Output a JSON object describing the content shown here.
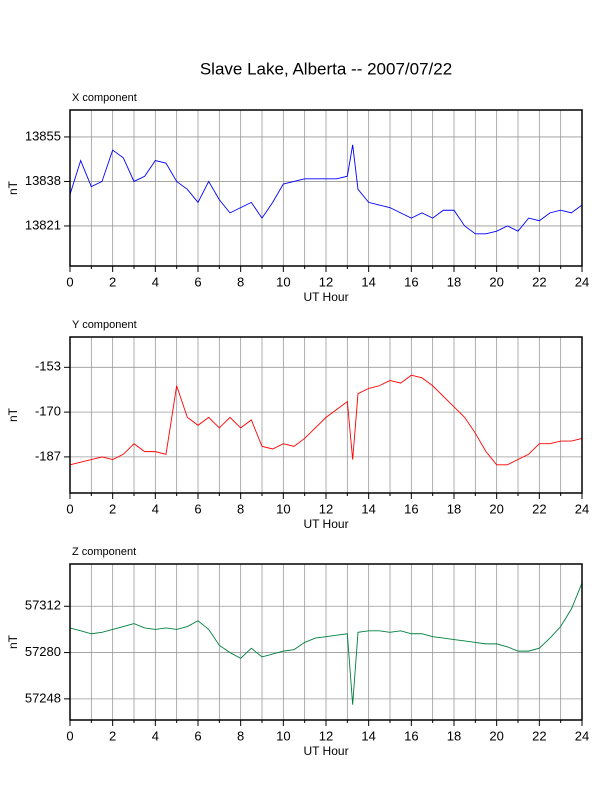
{
  "page": {
    "title": "Slave Lake, Alberta -- 2007/07/22"
  },
  "chart_data": [
    {
      "type": "line",
      "title": "X component",
      "xlabel": "UT Hour",
      "ylabel": "nT",
      "x": [
        0,
        0.5,
        1,
        1.5,
        2,
        2.5,
        3,
        3.5,
        4,
        4.5,
        5,
        5.5,
        6,
        6.5,
        7,
        7.5,
        8,
        8.5,
        9,
        9.5,
        10,
        10.5,
        11,
        11.5,
        12,
        12.5,
        13,
        13.25,
        13.5,
        14,
        14.5,
        15,
        15.5,
        16,
        16.5,
        17,
        17.5,
        18,
        18.5,
        19,
        19.5,
        20,
        20.5,
        21,
        21.5,
        22,
        22.5,
        23,
        23.5,
        24
      ],
      "series": [
        {
          "color": "#0000ff",
          "values": [
            13833,
            13846,
            13836,
            13838,
            13850,
            13847,
            13838,
            13840,
            13846,
            13845,
            13838,
            13835,
            13830,
            13838,
            13831,
            13826,
            13828,
            13830,
            13824,
            13830,
            13837,
            13838,
            13839,
            13839,
            13839,
            13839,
            13840,
            13852,
            13835,
            13830,
            13829,
            13828,
            13826,
            13824,
            13826,
            13824,
            13827,
            13827,
            13821,
            13818,
            13818,
            13819,
            13821,
            13819,
            13824,
            13823,
            13826,
            13827,
            13826,
            13829
          ]
        }
      ],
      "xlim": [
        0,
        24
      ],
      "xticks": [
        0,
        2,
        4,
        6,
        8,
        10,
        12,
        14,
        16,
        18,
        20,
        22,
        24
      ],
      "xminor": [
        1,
        3,
        5,
        7,
        9,
        11,
        13,
        15,
        17,
        19,
        21,
        23
      ],
      "ylim": [
        13805.7,
        13865.3
      ],
      "yticks": [
        13821,
        13838,
        13855
      ],
      "grid": true
    },
    {
      "type": "line",
      "title": "Y component",
      "xlabel": "UT Hour",
      "ylabel": "nT",
      "x": [
        0,
        0.5,
        1,
        1.5,
        2,
        2.5,
        3,
        3.5,
        4,
        4.5,
        5,
        5.5,
        6,
        6.5,
        7,
        7.5,
        8,
        8.5,
        9,
        9.5,
        10,
        10.5,
        11,
        11.5,
        12,
        12.5,
        13,
        13.25,
        13.5,
        14,
        14.5,
        15,
        15.5,
        16,
        16.5,
        17,
        17.5,
        18,
        18.5,
        19,
        19.5,
        20,
        20.5,
        21,
        21.5,
        22,
        22.5,
        23,
        23.5,
        24
      ],
      "series": [
        {
          "color": "#ff0000",
          "values": [
            -190,
            -189,
            -188,
            -187,
            -188,
            -186,
            -182,
            -185,
            -185,
            -186,
            -160,
            -172,
            -175,
            -172,
            -176,
            -172,
            -176,
            -173,
            -183,
            -184,
            -182,
            -183,
            -180,
            -176,
            -172,
            -169,
            -166,
            -188,
            -163,
            -161,
            -160,
            -158,
            -159,
            -156,
            -157,
            -160,
            -164,
            -168,
            -172,
            -178,
            -185,
            -190,
            -190,
            -188,
            -186,
            -182,
            -182,
            -181,
            -181,
            -180
          ]
        }
      ],
      "xlim": [
        0,
        24
      ],
      "xticks": [
        0,
        2,
        4,
        6,
        8,
        10,
        12,
        14,
        16,
        18,
        20,
        22,
        24
      ],
      "xminor": [
        1,
        3,
        5,
        7,
        9,
        11,
        13,
        15,
        17,
        19,
        21,
        23
      ],
      "ylim": [
        -200.7,
        -141.5
      ],
      "yticks": [
        -187,
        -170,
        -153
      ],
      "grid": true
    },
    {
      "type": "line",
      "title": "Z component",
      "xlabel": "UT Hour",
      "ylabel": "nT",
      "x": [
        0,
        0.5,
        1,
        1.5,
        2,
        2.5,
        3,
        3.5,
        4,
        4.5,
        5,
        5.5,
        6,
        6.5,
        7,
        7.5,
        8,
        8.5,
        9,
        9.5,
        10,
        10.5,
        11,
        11.5,
        12,
        12.5,
        13,
        13.25,
        13.5,
        14,
        14.5,
        15,
        15.5,
        16,
        16.5,
        17,
        17.5,
        18,
        18.5,
        19,
        19.5,
        20,
        20.5,
        21,
        21.5,
        22,
        22.5,
        23,
        23.5,
        24
      ],
      "series": [
        {
          "color": "#008040",
          "values": [
            57297,
            57295,
            57293,
            57294,
            57296,
            57298,
            57300,
            57297,
            57296,
            57297,
            57296,
            57298,
            57302,
            57296,
            57285,
            57280,
            57276,
            57283,
            57277,
            57279,
            57281,
            57282,
            57287,
            57290,
            57291,
            57292,
            57293,
            57244,
            57294,
            57295,
            57295,
            57294,
            57295,
            57293,
            57293,
            57291,
            57290,
            57289,
            57288,
            57287,
            57286,
            57286,
            57284,
            57281,
            57281,
            57283,
            57290,
            57298,
            57310,
            57328
          ]
        }
      ],
      "xlim": [
        0,
        24
      ],
      "xticks": [
        0,
        2,
        4,
        6,
        8,
        10,
        12,
        14,
        16,
        18,
        20,
        22,
        24
      ],
      "xminor": [
        1,
        3,
        5,
        7,
        9,
        11,
        13,
        15,
        17,
        19,
        21,
        23
      ],
      "ylim": [
        57233.4,
        57341.2
      ],
      "yticks": [
        57248,
        57280,
        57312
      ],
      "grid": true
    }
  ]
}
